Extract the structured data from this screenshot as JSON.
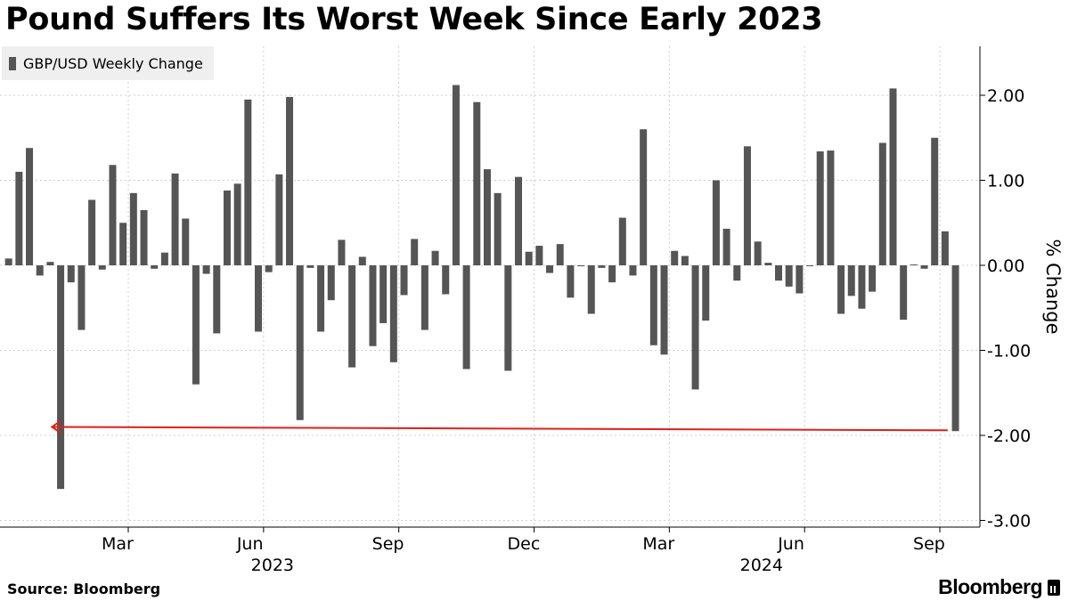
{
  "title": "Pound Suffers Its Worst Week Since Early 2023",
  "source": "Source: Bloomberg",
  "brand": "Bloomberg",
  "brand_icon": "bloomberg-logo-icon",
  "colors": {
    "bar": "#555555",
    "annotation_arrow": "#e0201a",
    "grid": "#cfcfcf",
    "legend_bg": "#efefef"
  },
  "chart_data": {
    "type": "bar",
    "title": "Pound Suffers Its Worst Week Since Early 2023",
    "ylabel": "% Change",
    "xlabel": "",
    "ylim": [
      -3.0,
      2.5
    ],
    "y_ticks": [
      "2.00",
      "1.00",
      "0.00",
      "-1.00",
      "-2.00",
      "-3.00"
    ],
    "y_tick_values": [
      2,
      1,
      0,
      -1,
      -2,
      -3
    ],
    "x_tick_labels": [
      "Mar",
      "Jun",
      "Sep",
      "Dec",
      "Mar",
      "Jun",
      "Sep"
    ],
    "x_tick_weeks": [
      12.5,
      25.5,
      38.5,
      51.5,
      64.5,
      77.5,
      90.5
    ],
    "year_labels": [
      "2023",
      "2024"
    ],
    "year_label_weeks": [
      25.5,
      72.5
    ],
    "grid": true,
    "legend": "top-left",
    "series": [
      {
        "name": "GBP/USD Weekly Change",
        "values": [
          0.08,
          1.1,
          1.38,
          -0.12,
          0.04,
          -2.63,
          -0.2,
          -0.76,
          0.77,
          -0.05,
          1.18,
          0.5,
          0.85,
          0.65,
          -0.04,
          0.15,
          1.08,
          0.55,
          -1.4,
          -0.1,
          -0.8,
          0.88,
          0.96,
          1.95,
          -0.78,
          -0.08,
          1.07,
          1.98,
          -1.82,
          -0.03,
          -0.78,
          -0.41,
          0.3,
          -1.2,
          0.1,
          -0.95,
          -0.68,
          -1.14,
          -0.35,
          0.31,
          -0.76,
          0.17,
          -0.34,
          2.12,
          -1.22,
          1.92,
          1.13,
          0.85,
          -1.24,
          1.04,
          0.16,
          0.23,
          -0.09,
          0.25,
          -0.38,
          -0.01,
          -0.57,
          -0.03,
          -0.2,
          0.56,
          -0.12,
          1.6,
          -0.94,
          -1.05,
          0.17,
          0.11,
          -1.46,
          -0.65,
          1.0,
          0.43,
          -0.18,
          1.4,
          0.28,
          0.03,
          -0.18,
          -0.25,
          -0.33,
          -0.01,
          1.34,
          1.35,
          -0.57,
          -0.36,
          -0.51,
          -0.31,
          1.44,
          2.08,
          -0.64,
          0.01,
          -0.04,
          1.5,
          0.4,
          -1.95
        ]
      }
    ],
    "annotation": {
      "type": "arrow",
      "from_week": 91,
      "to_week": 5,
      "y_start": -1.94,
      "y_end": -1.9
    }
  }
}
